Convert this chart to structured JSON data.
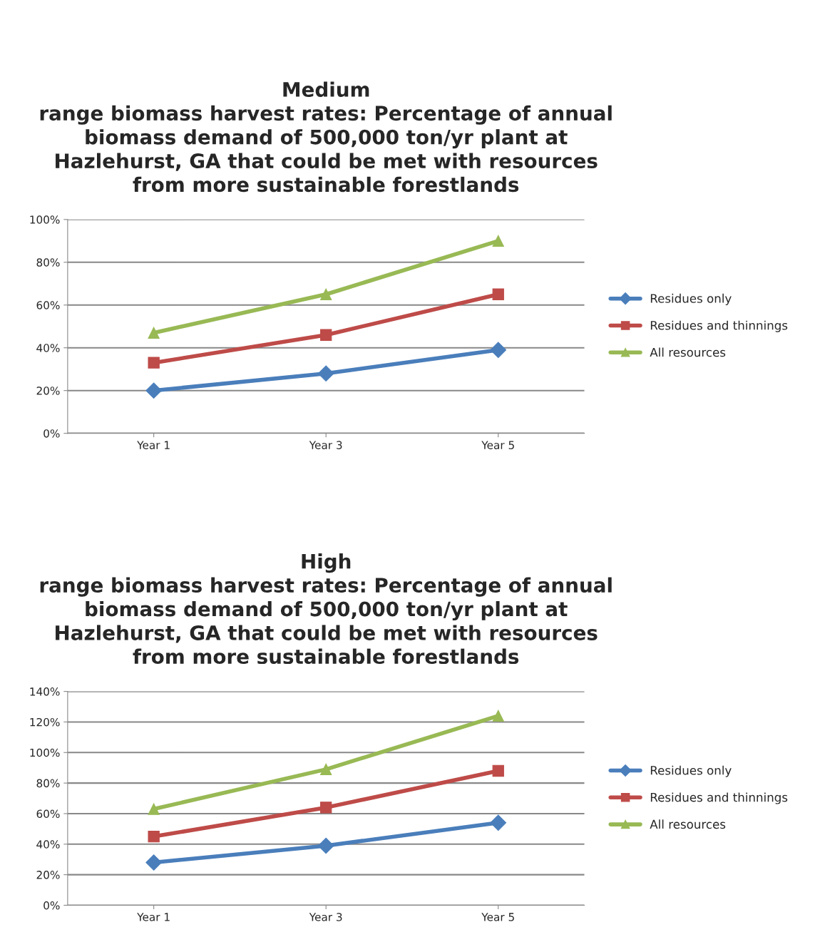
{
  "chart_data": [
    {
      "type": "line",
      "title": "Medium\nrange biomass harvest rates: Percentage of annual\nbiomass demand of 500,000 ton/yr plant at\nHazlehurst, GA that could be met with resources\nfrom more sustainable forestlands",
      "categories": [
        "Year 1",
        "Year 3",
        "Year 5"
      ],
      "series": [
        {
          "name": "Residues only",
          "color": "#4a7ebb",
          "marker": "diamond",
          "values": [
            20,
            28,
            39
          ]
        },
        {
          "name": "Residues and thinnings",
          "color": "#be4b48",
          "marker": "square",
          "values": [
            33,
            46,
            65
          ]
        },
        {
          "name": "All resources",
          "color": "#98b954",
          "marker": "triangle",
          "values": [
            47,
            65,
            90
          ]
        }
      ],
      "ylim": [
        0,
        100
      ],
      "yticks": [
        {
          "value": 0,
          "label": "0%"
        },
        {
          "value": 20,
          "label": "20%"
        },
        {
          "value": 40,
          "label": "40%"
        },
        {
          "value": 60,
          "label": "60%"
        },
        {
          "value": 80,
          "label": "80%"
        },
        {
          "value": 100,
          "label": "100%"
        }
      ],
      "grid": "y",
      "legend": "right",
      "line_style": "solid"
    },
    {
      "type": "line",
      "title": "High\nrange biomass harvest rates: Percentage of annual\nbiomass demand of 500,000 ton/yr plant at\nHazlehurst, GA that could be met with resources\nfrom more sustainable forestlands",
      "categories": [
        "Year 1",
        "Year 3",
        "Year 5"
      ],
      "series": [
        {
          "name": "Residues only",
          "color": "#4a7ebb",
          "marker": "diamond",
          "values": [
            28,
            39,
            54
          ]
        },
        {
          "name": "Residues and thinnings",
          "color": "#be4b48",
          "marker": "square",
          "values": [
            45,
            64,
            88
          ]
        },
        {
          "name": "All resources",
          "color": "#98b954",
          "marker": "triangle",
          "values": [
            63,
            89,
            124
          ]
        }
      ],
      "ylim": [
        0,
        140
      ],
      "yticks": [
        {
          "value": 0,
          "label": "0%"
        },
        {
          "value": 20,
          "label": "20%"
        },
        {
          "value": 40,
          "label": "40%"
        },
        {
          "value": 60,
          "label": "60%"
        },
        {
          "value": 80,
          "label": "80%"
        },
        {
          "value": 100,
          "label": "100%"
        },
        {
          "value": 120,
          "label": "120%"
        },
        {
          "value": 140,
          "label": "140%"
        }
      ],
      "grid": "y",
      "legend": "right",
      "line_style": "solid"
    }
  ]
}
